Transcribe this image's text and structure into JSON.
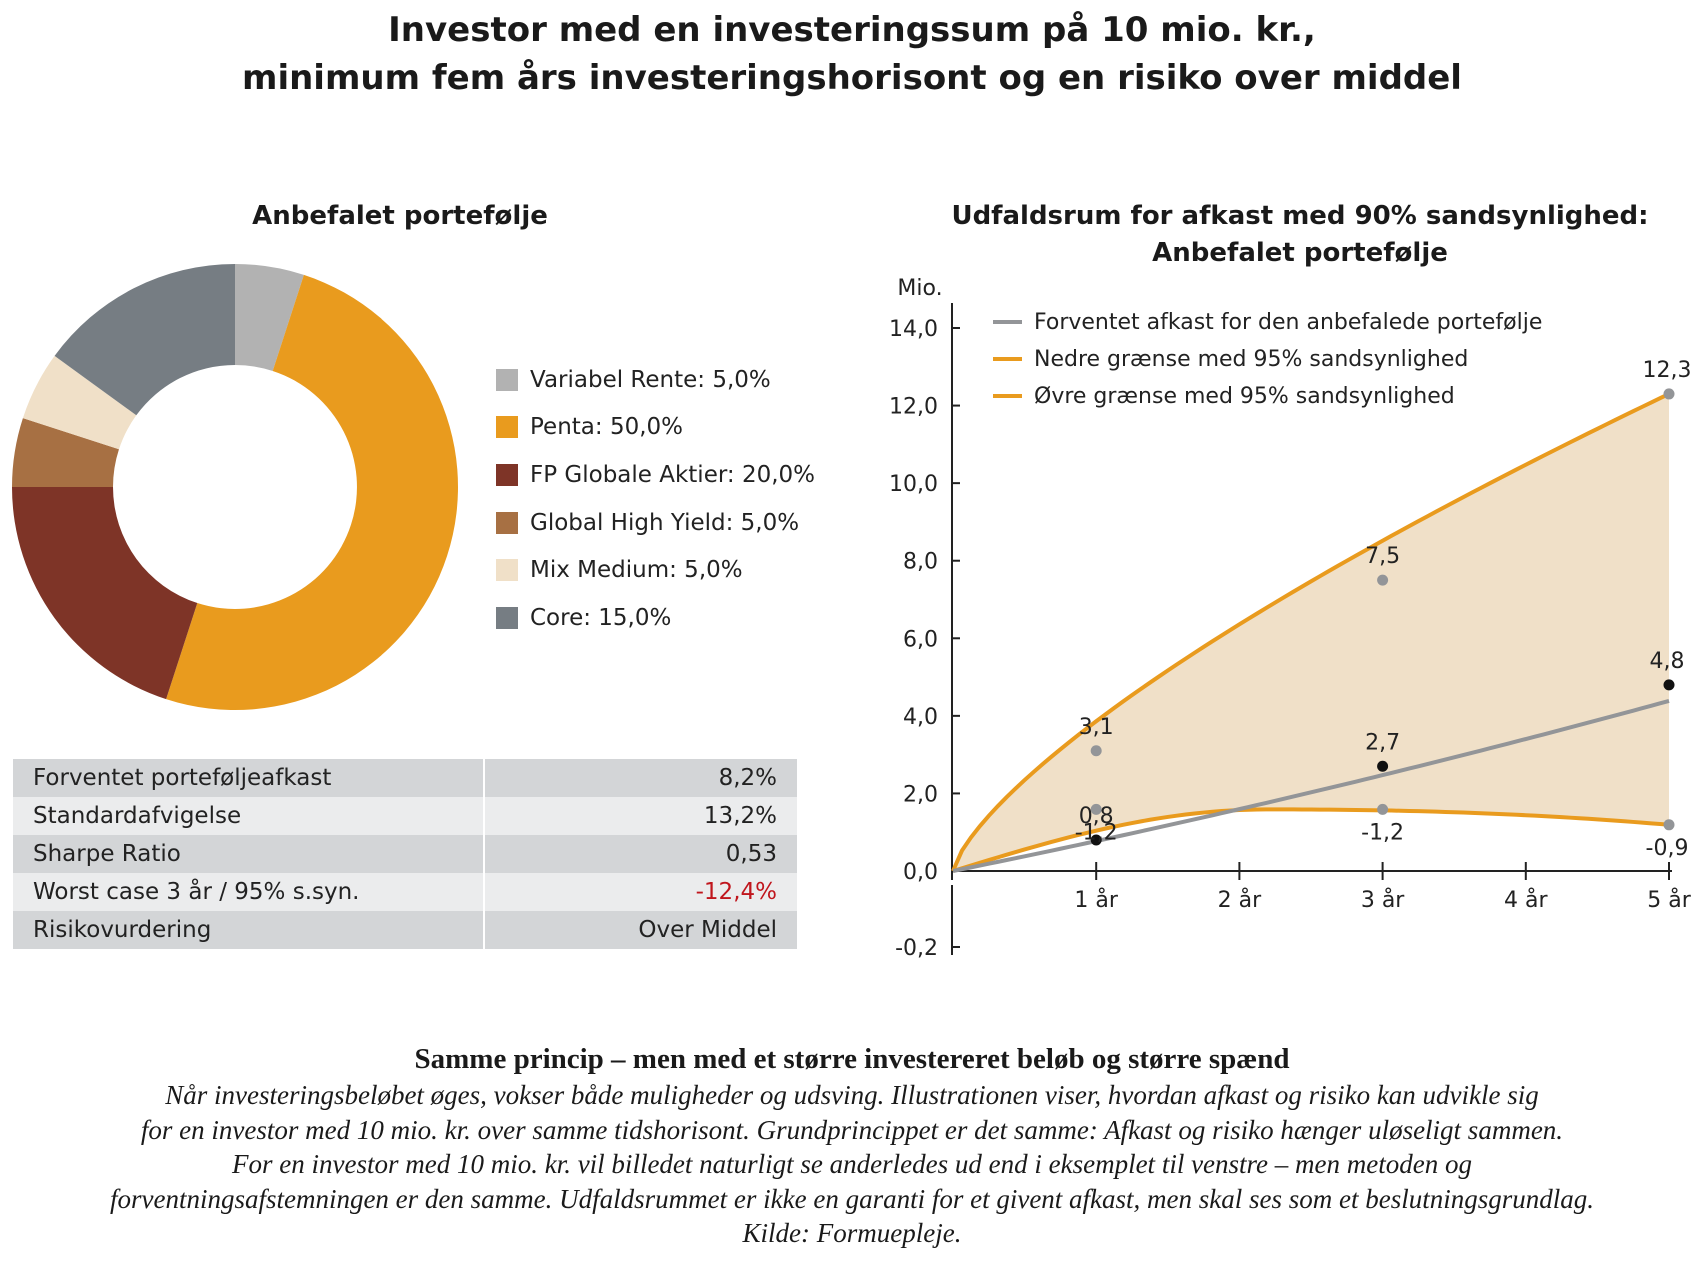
{
  "title_lines": [
    "Investor med en investeringssum på 10 mio. kr.,",
    "minimum fem års investeringshorisont og en risiko over middel"
  ],
  "donut": {
    "title": "Anbefalet portefølje",
    "legend": [
      {
        "label": "Variabel Rente: 5,0%",
        "value": 5,
        "color": "#b2b2b2"
      },
      {
        "label": "Penta: 50,0%",
        "value": 50,
        "color": "#e99b1e"
      },
      {
        "label": "FP Globale Aktier: 20,0%",
        "value": 20,
        "color": "#7e3427"
      },
      {
        "label": "Global High Yield: 5,0%",
        "value": 5,
        "color": "#a77043"
      },
      {
        "label": "Mix Medium: 5,0%",
        "value": 5,
        "color": "#f0e0c8"
      },
      {
        "label": "Core: 15,0%",
        "value": 15,
        "color": "#767d83"
      }
    ]
  },
  "stats": [
    {
      "label": "Forventet porteføljeafkast",
      "value": "8,2%"
    },
    {
      "label": "Standardafvigelse",
      "value": "13,2%"
    },
    {
      "label": "Sharpe Ratio",
      "value": "0,53"
    },
    {
      "label": "Worst case 3 år / 95% s.syn.",
      "value": "-12,4%",
      "color": "#c0161d"
    },
    {
      "label": "Risikovurdering",
      "value": "Over Middel"
    }
  ],
  "line_chart": {
    "title_lines": [
      "Udfaldsrum for afkast med 90% sandsynlighed:",
      "Anbefalet portefølje"
    ]
  },
  "chart_data": [
    {
      "type": "pie",
      "title": "Anbefalet portefølje",
      "labels": [
        "Variabel Rente",
        "Penta",
        "FP Globale Aktier",
        "Global High Yield",
        "Mix Medium",
        "Core"
      ],
      "values": [
        5,
        50,
        20,
        5,
        5,
        15
      ]
    },
    {
      "type": "area",
      "title": "Udfaldsrum for afkast med 90% sandsynlighed: Anbefalet portefølje",
      "ylabel": "Mio.",
      "ylim": [
        -0.2,
        14
      ],
      "yticks": [
        "14,0",
        "12,0",
        "10,0",
        "8,0",
        "6,0",
        "4,0",
        "2,0",
        "0,0",
        "-0,2"
      ],
      "xticks": [
        "1 år",
        "2 år",
        "3 år",
        "4 år",
        "5 år"
      ],
      "legend_position": "top-left",
      "series": [
        {
          "name": "Forventet afkast for den anbefalede portefølje",
          "color": "#939598",
          "x": [
            0,
            1,
            3,
            5
          ],
          "y": [
            0,
            0.8,
            2.7,
            4.8
          ],
          "labels": [
            "0,8",
            "2,7",
            "4,8"
          ]
        },
        {
          "name": "Nedre grænse med 95% sandsynlighed",
          "color": "#e99b1e",
          "x": [
            0,
            1,
            3,
            5
          ],
          "y": [
            0,
            -1.2,
            -1.2,
            -0.9
          ],
          "labels": [
            "-1,2",
            "-1,2",
            "-0,9"
          ]
        },
        {
          "name": "Øvre grænse med 95% sandsynlighed",
          "color": "#e99b1e",
          "x": [
            0,
            1,
            3,
            5
          ],
          "y": [
            0,
            3.1,
            7.5,
            12.3
          ],
          "labels": [
            "3,1",
            "7,5",
            "12,3"
          ]
        }
      ]
    }
  ],
  "footer": {
    "title": "Samme princip – men med et større investereret beløb og større spænd",
    "lines": [
      "Når investeringsbeløbet øges, vokser både muligheder og udsving. Illustrationen viser, hvordan afkast og risiko kan udvikle sig",
      "for en investor med 10 mio. kr. over samme tidshorisont. Grundprincippet er det samme: Afkast og risiko hænger uløseligt sammen.",
      "For en investor med 10 mio. kr. vil billedet naturligt se anderledes ud end i eksemplet til venstre – men metoden og",
      "forventningsafstemningen er den samme. Udfaldsrummet er ikke en garanti for et givent afkast, men skal ses som et beslutningsgrundlag.",
      "Kilde: Formuepleje."
    ]
  }
}
